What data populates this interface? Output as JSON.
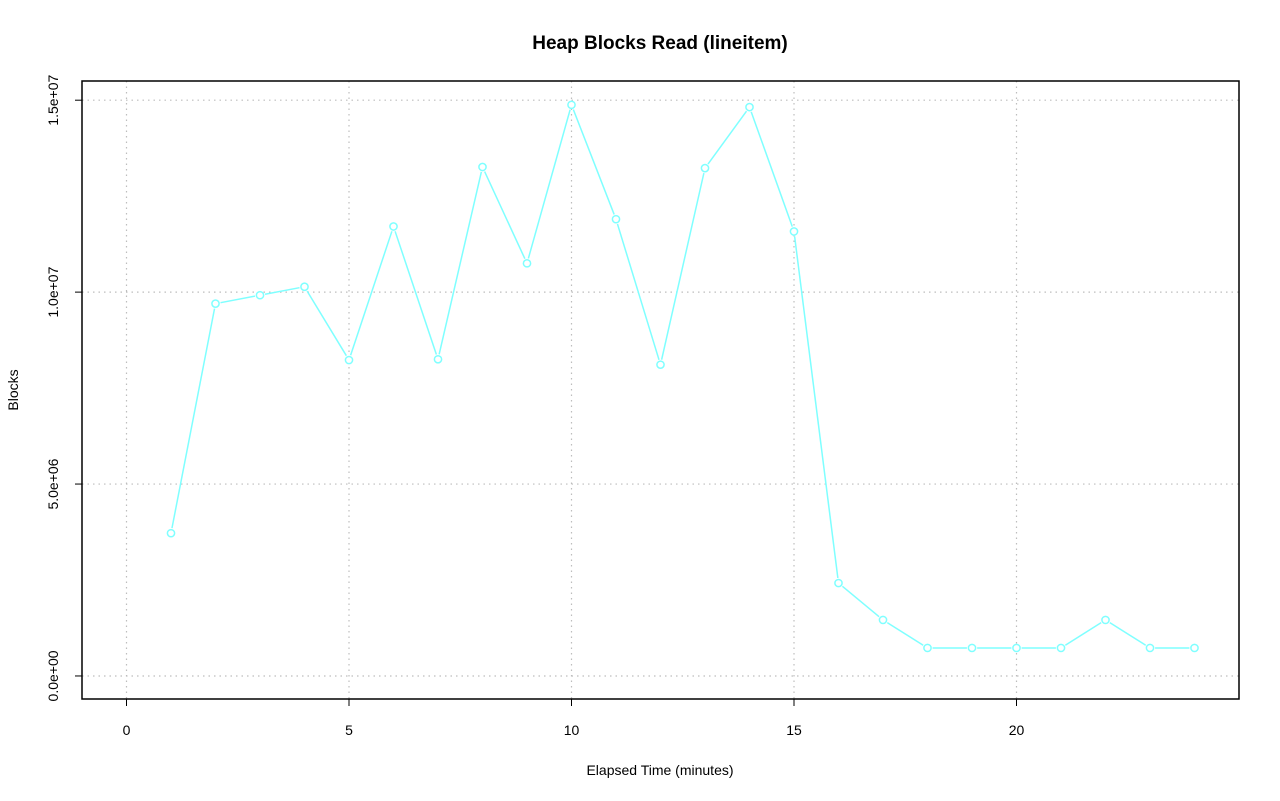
{
  "chart_data": {
    "type": "line",
    "title": "Heap Blocks Read (lineitem)",
    "xlabel": "Elapsed Time (minutes)",
    "ylabel": "Blocks",
    "xlim": [
      -1,
      25
    ],
    "ylim": [
      -600000,
      15500000
    ],
    "x_ticks": [
      0,
      5,
      10,
      15,
      20
    ],
    "x_tick_labels": [
      "0",
      "5",
      "10",
      "15",
      "20"
    ],
    "y_ticks": [
      0,
      5000000,
      10000000,
      15000000
    ],
    "y_tick_labels": [
      "0.0e+00",
      "5.0e+06",
      "1.0e+07",
      "1.5e+07"
    ],
    "grid": true,
    "line_color": "#7fffff",
    "series": [
      {
        "x": [
          1,
          2,
          3,
          4,
          5,
          6,
          7,
          8,
          9,
          10,
          11,
          12,
          13,
          14,
          15,
          16,
          17,
          18,
          19,
          20,
          21,
          22,
          23,
          24
        ],
        "values": [
          3720000,
          9700000,
          9920000,
          10140000,
          8230000,
          11710000,
          8250000,
          13260000,
          10750000,
          14880000,
          11900000,
          8110000,
          13230000,
          14820000,
          11580000,
          2420000,
          1460000,
          730000,
          730000,
          730000,
          730000,
          1460000,
          730000,
          730000
        ]
      }
    ]
  }
}
